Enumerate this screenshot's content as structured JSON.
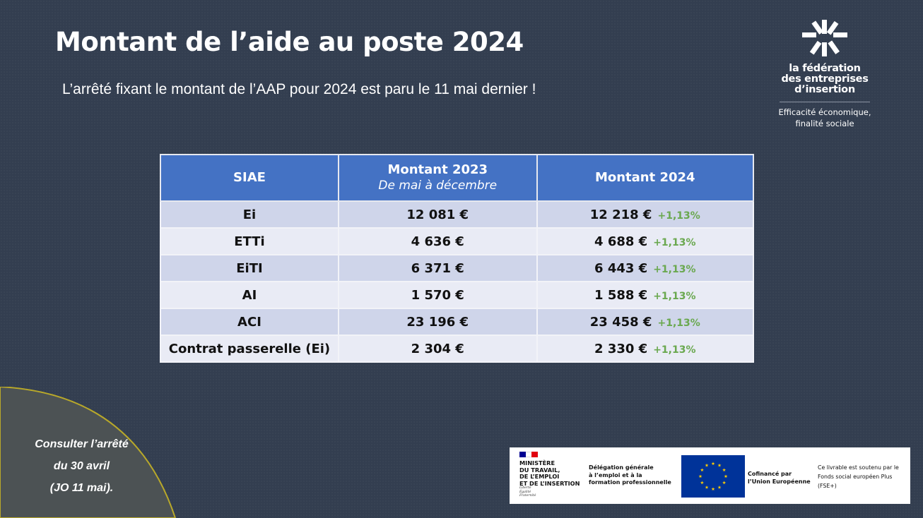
{
  "header": {
    "title": "Montant de l’aide au poste 2024",
    "subtitle": "L’arrêté fixant le montant de l’AAP pour 2024 est paru le 11 mai dernier !"
  },
  "logo": {
    "name_line1": "la fédération",
    "name_line2": "des entreprises",
    "name_line3": "d’insertion",
    "tagline_line1": "Efficacité économique,",
    "tagline_line2": "finalité sociale"
  },
  "table": {
    "headers": {
      "col1": "SIAE",
      "col2": "Montant 2023",
      "col2_sub": "De mai à décembre",
      "col3": "Montant 2024"
    },
    "rows": [
      {
        "siae": "Ei",
        "m2023": "12 081 €",
        "m2024": "12 218 €",
        "change": "+1,13%"
      },
      {
        "siae": "ETTi",
        "m2023": "4 636 €",
        "m2024": "4 688 €",
        "change": "+1,13%"
      },
      {
        "siae": "EiTI",
        "m2023": "6 371 €",
        "m2024": "6 443 €",
        "change": "+1,13%"
      },
      {
        "siae": "AI",
        "m2023": "1 570 €",
        "m2024": "1 588 €",
        "change": "+1,13%"
      },
      {
        "siae": "ACI",
        "m2023": "23 196 €",
        "m2024": "23 458 €",
        "change": "+1,13%"
      },
      {
        "siae": "Contrat passerelle (Ei)",
        "m2023": "2 304 €",
        "m2024": "2 330 €",
        "change": "+1,13%"
      }
    ]
  },
  "corner": {
    "line1": "Consulter l’arrêté",
    "line2": "du 30 avril",
    "line3": "(JO 11 mai)."
  },
  "partners": {
    "ministry_line1": "MINISTÈRE",
    "ministry_line2": "DU TRAVAIL,",
    "ministry_line3": "DE L’EMPLOI",
    "ministry_line4": "ET DE L’INSERTION",
    "motto_line1": "Liberté",
    "motto_line2": "Égalité",
    "motto_line3": "Fraternité",
    "dgefp_line1": "Délégation générale",
    "dgefp_line2": "à l’emploi et à la",
    "dgefp_line3": "formation professionnelle",
    "cofi_line1": "Cofinancé par",
    "cofi_line2": "l’Union Européenne",
    "fse_line1": "Ce livrable est soutenu par le",
    "fse_line2": "Fonds social européen Plus",
    "fse_line3": "(FSE+)"
  },
  "colors": {
    "background": "#333e50",
    "table_header": "#4472c4",
    "row_odd": "#cfd5ea",
    "row_even": "#e9ebf5",
    "change_green": "#6aa84f",
    "corner_outline": "#b8a82a"
  }
}
